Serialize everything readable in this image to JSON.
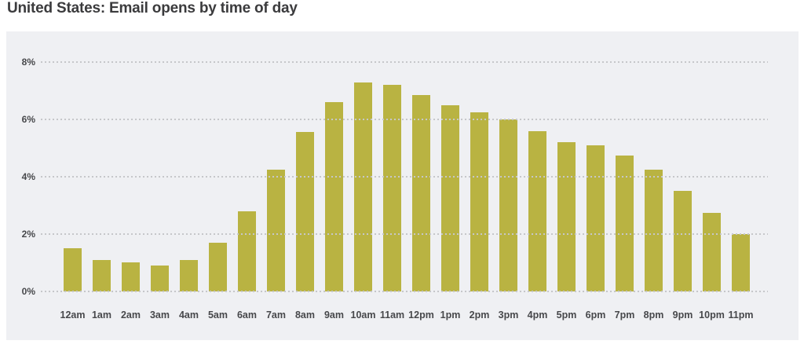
{
  "chart_data": {
    "type": "bar",
    "title": "United States: Email opens by time of day",
    "categories": [
      "12am",
      "1am",
      "2am",
      "3am",
      "4am",
      "5am",
      "6am",
      "7am",
      "8am",
      "9am",
      "10am",
      "11am",
      "12pm",
      "1pm",
      "2pm",
      "3pm",
      "4pm",
      "5pm",
      "6pm",
      "7pm",
      "8pm",
      "9pm",
      "10pm",
      "11pm"
    ],
    "values": [
      1.5,
      1.1,
      1.0,
      0.9,
      1.1,
      1.7,
      2.8,
      4.25,
      5.55,
      6.6,
      7.3,
      7.2,
      6.85,
      6.5,
      6.25,
      6.0,
      5.6,
      5.2,
      5.1,
      4.75,
      4.25,
      3.5,
      2.75,
      2.0
    ],
    "xlabel": "",
    "ylabel": "",
    "ylim": [
      0,
      8
    ],
    "yticks": [
      "0%",
      "2%",
      "4%",
      "6%",
      "8%"
    ],
    "ytick_values": [
      0,
      2,
      4,
      6,
      8
    ],
    "grid": "horizontal-dotted",
    "legend": "none",
    "colors": {
      "bar": "#b9b342",
      "panel_bg": "#eff0f3",
      "grid": "#c6c7ca",
      "title": "#3b3b3d",
      "labels": "#47484b"
    }
  }
}
